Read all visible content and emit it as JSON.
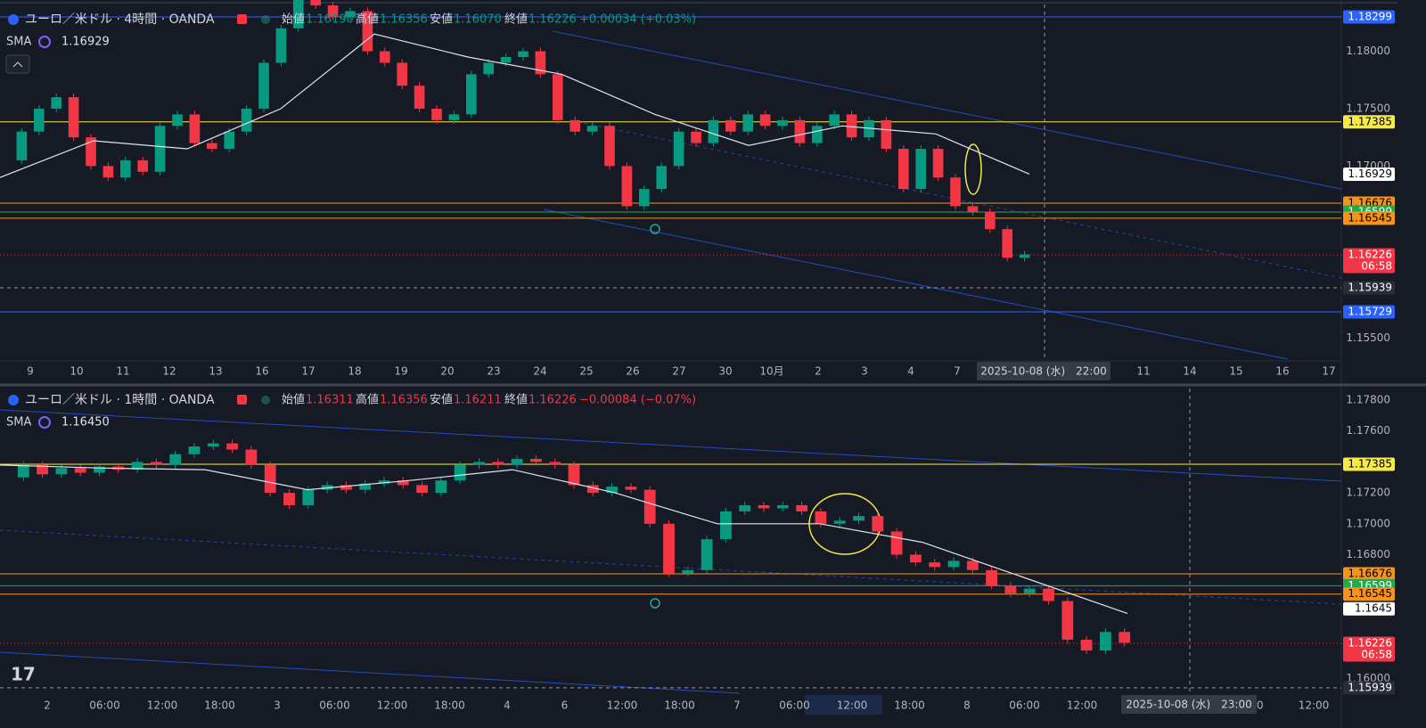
{
  "panels": [
    {
      "header": {
        "symbol": "ユーロ／米ドル · 4時間 · OANDA",
        "open_label": "始値",
        "open": "1.16190",
        "high_label": "高値",
        "high": "1.16356",
        "low_label": "安値",
        "low": "1.16070",
        "close_label": "終値",
        "close": "1.16226",
        "change": "+0.00034 (+0.03%)",
        "sma_label": "SMA",
        "sma_value": "1.16929"
      },
      "ylim": [
        1.15302,
        1.18447
      ],
      "yticks": [
        {
          "value": 1.18,
          "label": "1.18000"
        },
        {
          "value": 1.175,
          "label": "1.17500"
        },
        {
          "value": 1.17,
          "label": "1.17000"
        },
        {
          "value": 1.155,
          "label": "1.15500"
        }
      ],
      "tags": [
        {
          "value": 1.18299,
          "color": "#2962ff",
          "text_color": "#ffffff"
        },
        {
          "value": 1.17385,
          "color": "#f7e94a",
          "text_color": "#000000"
        },
        {
          "value": 1.16929,
          "color": "#ffffff",
          "text_color": "#000000"
        },
        {
          "value": 1.16676,
          "color": "#f7931a",
          "text_color": "#000000"
        },
        {
          "value": 1.16599,
          "color": "#22ab4a",
          "text_color": "#ffffff"
        },
        {
          "value": 1.16545,
          "color": "#f7931a",
          "text_color": "#000000"
        },
        {
          "value": 1.16226,
          "color": "#f23645",
          "text_color": "#ffffff",
          "countdown": "06:58"
        },
        {
          "value": 1.15939,
          "color": "#2a2e39",
          "text_color": "#ffffff"
        },
        {
          "value": 1.15729,
          "color": "#2962ff",
          "text_color": "#ffffff"
        }
      ],
      "closes": [
        1.1705,
        1.173,
        1.175,
        1.176,
        1.1725,
        1.17,
        1.169,
        1.1705,
        1.1695,
        1.1735,
        1.1745,
        1.172,
        1.1715,
        1.173,
        1.175,
        1.179,
        1.182,
        1.1845,
        1.184,
        1.183,
        1.1835,
        1.18,
        1.179,
        1.177,
        1.175,
        1.174,
        1.1745,
        1.178,
        1.179,
        1.1795,
        1.18,
        1.178,
        1.174,
        1.173,
        1.1735,
        1.17,
        1.1665,
        1.168,
        1.17,
        1.173,
        1.172,
        1.174,
        1.173,
        1.1745,
        1.1735,
        1.174,
        1.172,
        1.1735,
        1.1745,
        1.1725,
        1.174,
        1.1715,
        1.168,
        1.1715,
        1.169,
        1.1665,
        1.166,
        1.1645,
        1.162,
        1.1623
      ],
      "sma": [
        1.169,
        1.1722,
        1.1715,
        1.175,
        1.1815,
        1.1795,
        1.178,
        1.1745,
        1.1718,
        1.1735,
        1.1728,
        1.1693
      ],
      "x_labels": [
        "9",
        "10",
        "11",
        "12",
        "13",
        "16",
        "17",
        "18",
        "19",
        "20",
        "23",
        "24",
        "25",
        "26",
        "27",
        "30",
        "10月",
        "2",
        "3",
        "4",
        "7",
        "11",
        "14",
        "15",
        "16",
        "17"
      ],
      "crosshair_label": "2025-10-08 (水)　22:00"
    },
    {
      "header": {
        "symbol": "ユーロ／米ドル · 1時間 · OANDA",
        "open_label": "始値",
        "open": "1.16311",
        "high_label": "高値",
        "high": "1.16356",
        "low_label": "安値",
        "low": "1.16211",
        "close_label": "終値",
        "close": "1.16226",
        "change": "−0.00084 (−0.07%)",
        "sma_label": "SMA",
        "sma_value": "1.16450"
      },
      "ylim": [
        1.15892,
        1.17875
      ],
      "yticks": [
        {
          "value": 1.178,
          "label": "1.17800"
        },
        {
          "value": 1.176,
          "label": "1.17600"
        },
        {
          "value": 1.172,
          "label": "1.17200"
        },
        {
          "value": 1.17,
          "label": "1.17000"
        },
        {
          "value": 1.168,
          "label": "1.16800"
        },
        {
          "value": 1.16,
          "label": "1.16000"
        }
      ],
      "tags": [
        {
          "value": 1.17385,
          "color": "#f7e94a",
          "text_color": "#000000"
        },
        {
          "value": 1.16676,
          "color": "#f7931a",
          "text_color": "#000000"
        },
        {
          "value": 1.16599,
          "color": "#22ab4a",
          "text_color": "#ffffff"
        },
        {
          "value": 1.16545,
          "color": "#f7931a",
          "text_color": "#000000"
        },
        {
          "value": 1.1645,
          "color": "#ffffff",
          "text_color": "#000000"
        },
        {
          "value": 1.16226,
          "color": "#f23645",
          "text_color": "#ffffff",
          "countdown": "06:58"
        },
        {
          "value": 1.15939,
          "color": "#2a2e39",
          "text_color": "#ffffff"
        }
      ],
      "closes": [
        1.173,
        1.1738,
        1.1732,
        1.1736,
        1.1733,
        1.1737,
        1.1735,
        1.174,
        1.1738,
        1.1745,
        1.175,
        1.1752,
        1.1748,
        1.1738,
        1.172,
        1.1712,
        1.1722,
        1.1725,
        1.1722,
        1.1726,
        1.1728,
        1.1725,
        1.172,
        1.1728,
        1.1738,
        1.174,
        1.1738,
        1.1742,
        1.174,
        1.1738,
        1.1725,
        1.172,
        1.1724,
        1.1722,
        1.17,
        1.1668,
        1.167,
        1.169,
        1.1708,
        1.1712,
        1.171,
        1.1712,
        1.1708,
        1.17,
        1.1702,
        1.1705,
        1.1695,
        1.168,
        1.1675,
        1.1672,
        1.1676,
        1.167,
        1.166,
        1.1655,
        1.1658,
        1.165,
        1.1625,
        1.1618,
        1.163,
        1.1623
      ],
      "sma": [
        1.1738,
        1.1736,
        1.1735,
        1.1722,
        1.1728,
        1.1735,
        1.172,
        1.17,
        1.17,
        1.1688,
        1.1665,
        1.1642
      ],
      "x_labels": [
        "2",
        "06:00",
        "12:00",
        "18:00",
        "3",
        "06:00",
        "12:00",
        "18:00",
        "4",
        "6",
        "12:00",
        "18:00",
        "7",
        "06:00",
        "12:00",
        "18:00",
        "8",
        "06:00",
        "12:00",
        "00",
        "12:00"
      ],
      "crosshair_label": "2025-10-08 (水)　23:00"
    }
  ]
}
